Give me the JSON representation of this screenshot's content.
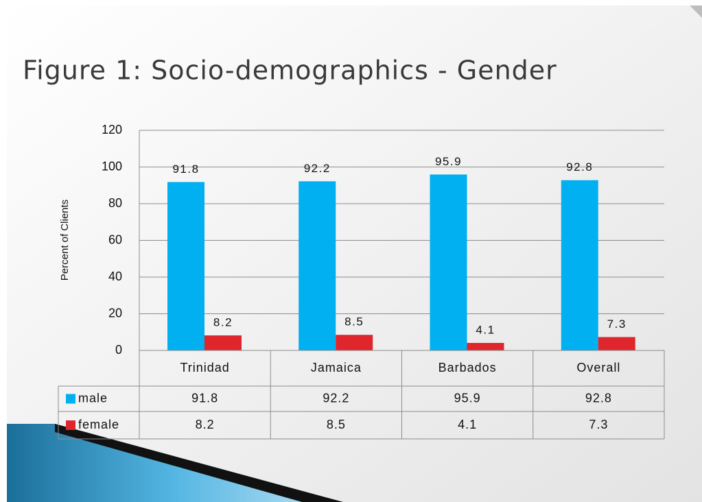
{
  "chart_data": {
    "type": "bar",
    "title": "Figure 1: Socio-demographics - Gender",
    "ylabel": "Percent of Clients",
    "categories": [
      "Trinidad",
      "Jamaica",
      "Barbados",
      "Overall"
    ],
    "series": [
      {
        "name": "male",
        "color": "#00b0f0",
        "values": [
          91.8,
          92.2,
          95.9,
          92.8
        ]
      },
      {
        "name": "female",
        "color": "#e0262d",
        "values": [
          8.2,
          8.5,
          4.1,
          7.3
        ]
      }
    ],
    "ylim": [
      0,
      120
    ],
    "yticks": [
      0,
      20,
      40,
      60,
      80,
      100,
      120
    ],
    "grid": true
  }
}
